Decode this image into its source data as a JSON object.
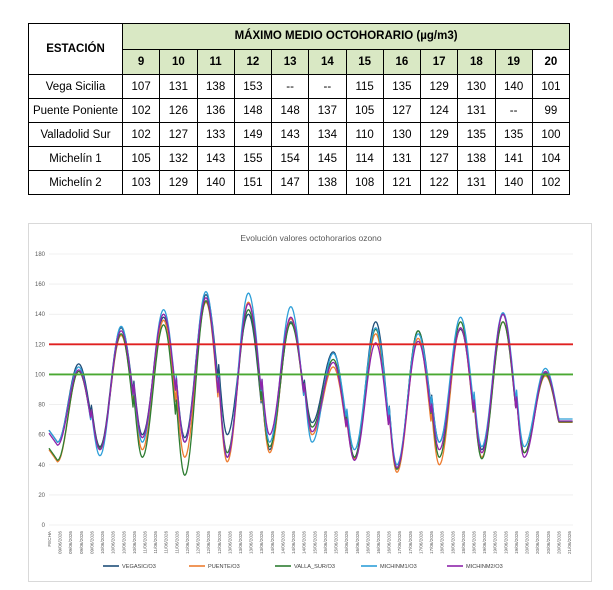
{
  "table": {
    "station_header": "ESTACIÓN",
    "main_header": "MÁXIMO MEDIO OCTOHORARIO (µg/m3)",
    "days": [
      "9",
      "10",
      "11",
      "12",
      "13",
      "14",
      "15",
      "16",
      "17",
      "18",
      "19",
      "20"
    ],
    "rows": [
      {
        "name": "Vega Sicilia",
        "values": [
          "107",
          "131",
          "138",
          "153",
          "--",
          "--",
          "115",
          "135",
          "129",
          "130",
          "140",
          "101"
        ]
      },
      {
        "name": "Puente Poniente",
        "values": [
          "102",
          "126",
          "136",
          "148",
          "148",
          "137",
          "105",
          "127",
          "124",
          "131",
          "--",
          "99"
        ]
      },
      {
        "name": "Valladolid Sur",
        "values": [
          "102",
          "127",
          "133",
          "149",
          "143",
          "134",
          "110",
          "130",
          "129",
          "135",
          "135",
          "100"
        ]
      },
      {
        "name": "Michelín 1",
        "values": [
          "105",
          "132",
          "143",
          "155",
          "154",
          "145",
          "114",
          "131",
          "127",
          "138",
          "141",
          "104"
        ]
      },
      {
        "name": "Michelín 2",
        "values": [
          "103",
          "129",
          "140",
          "151",
          "147",
          "138",
          "108",
          "121",
          "122",
          "131",
          "140",
          "102"
        ]
      }
    ]
  },
  "chart_data": {
    "type": "line",
    "title": "Evolución valores octohorarios ozono",
    "xlabel": "",
    "ylabel": "",
    "ylim": [
      0,
      180
    ],
    "yticks": [
      0,
      20,
      40,
      60,
      80,
      100,
      120,
      140,
      160,
      180
    ],
    "grid": true,
    "legend_position": "bottom",
    "x_first_label": "FECHA",
    "x": [
      "09/06/2026",
      "09/06/2026",
      "09/06/2026",
      "09/06/2026",
      "10/06/2026",
      "10/06/2026",
      "10/06/2026",
      "10/06/2026",
      "11/06/2026",
      "11/06/2026",
      "11/06/2026",
      "11/06/2026",
      "12/06/2026",
      "12/06/2026",
      "12/06/2026",
      "12/06/2026",
      "13/06/2026",
      "13/06/2026",
      "13/06/2026",
      "13/06/2026",
      "14/06/2026",
      "14/06/2026",
      "14/06/2026",
      "14/06/2026",
      "15/06/2026",
      "15/06/2026",
      "15/06/2026",
      "15/06/2026",
      "16/06/2026",
      "16/06/2026",
      "16/06/2026",
      "16/06/2026",
      "17/06/2026",
      "17/06/2026",
      "17/06/2026",
      "17/06/2026",
      "18/06/2026",
      "18/06/2026",
      "18/06/2026",
      "18/06/2026",
      "19/06/2026",
      "19/06/2026",
      "19/06/2026",
      "19/06/2026",
      "20/06/2026",
      "20/06/2026",
      "20/06/2026",
      "20/06/2026",
      "21/06/2026"
    ],
    "reference_lines": [
      {
        "value": 120,
        "color": "#e02020"
      },
      {
        "value": 100,
        "color": "#4aa832"
      }
    ],
    "series": [
      {
        "name": "VEGASIC/O3",
        "color": "#1f4e79",
        "peaks": [
          107,
          131,
          138,
          153,
          140,
          135,
          115,
          135,
          129,
          130,
          140,
          101
        ],
        "troughs": [
          55,
          52,
          60,
          58,
          60,
          50,
          68,
          45,
          38,
          55,
          50,
          48,
          55
        ]
      },
      {
        "name": "PUENTE/O3",
        "color": "#ed7d31",
        "peaks": [
          102,
          126,
          136,
          148,
          148,
          137,
          105,
          127,
          124,
          131,
          135,
          99
        ],
        "troughs": [
          42,
          50,
          50,
          45,
          42,
          48,
          60,
          44,
          35,
          40,
          45,
          48,
          55
        ]
      },
      {
        "name": "VALLA_SUR/O3",
        "color": "#2e7d32",
        "peaks": [
          102,
          127,
          133,
          149,
          143,
          134,
          110,
          130,
          129,
          135,
          135,
          100
        ],
        "troughs": [
          43,
          51,
          45,
          33,
          48,
          52,
          65,
          45,
          37,
          45,
          44,
          48,
          55
        ]
      },
      {
        "name": "MICHINM1/O3",
        "color": "#2e9fd8",
        "peaks": [
          105,
          132,
          143,
          155,
          154,
          145,
          114,
          131,
          127,
          138,
          141,
          104
        ],
        "troughs": [
          55,
          46,
          55,
          55,
          45,
          55,
          55,
          50,
          40,
          55,
          52,
          52,
          56
        ]
      },
      {
        "name": "MICHINM2/O3",
        "color": "#8e24aa",
        "peaks": [
          103,
          129,
          140,
          151,
          147,
          138,
          108,
          121,
          122,
          131,
          140,
          102
        ],
        "troughs": [
          53,
          50,
          58,
          55,
          45,
          60,
          62,
          43,
          38,
          50,
          48,
          45,
          55
        ]
      }
    ]
  }
}
